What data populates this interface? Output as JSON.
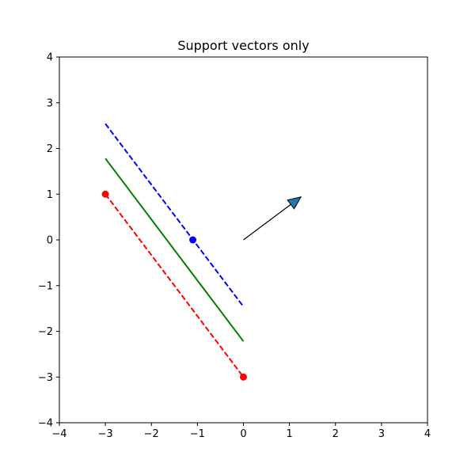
{
  "chart_data": {
    "type": "line",
    "title": "Support vectors only",
    "xlabel": "",
    "ylabel": "",
    "xlim": [
      -4,
      4
    ],
    "ylim": [
      -4,
      4
    ],
    "grid": false,
    "x_ticks": [
      -4,
      -3,
      -2,
      -1,
      0,
      1,
      2,
      3,
      4
    ],
    "y_ticks": [
      -4,
      -3,
      -2,
      -1,
      0,
      1,
      2,
      3,
      4
    ],
    "x_tick_labels": [
      "−4",
      "−3",
      "−2",
      "−1",
      "0",
      "1",
      "2",
      "3",
      "4"
    ],
    "y_tick_labels": [
      "−4",
      "−3",
      "−2",
      "−1",
      "0",
      "1",
      "2",
      "3",
      "4"
    ],
    "lines": [
      {
        "name": "decision-boundary",
        "style": "solid",
        "color": "#008000",
        "x": [
          -3,
          0
        ],
        "y": [
          1.78,
          -2.22
        ]
      },
      {
        "name": "margin-positive",
        "style": "dashed",
        "color": "#0000ff",
        "x": [
          -3,
          0
        ],
        "y": [
          2.54,
          -1.46
        ]
      },
      {
        "name": "margin-negative",
        "style": "dashed",
        "color": "#ff0000",
        "x": [
          -3,
          0
        ],
        "y": [
          1.0,
          -3.0
        ]
      }
    ],
    "points": [
      {
        "name": "support-vector-blue",
        "color": "#0000ff",
        "x": -1.1,
        "y": 0.0
      },
      {
        "name": "support-vector-red-1",
        "color": "#ff0000",
        "x": -3.0,
        "y": 1.0
      },
      {
        "name": "support-vector-red-2",
        "color": "#ff0000",
        "x": 0.0,
        "y": -3.0
      }
    ],
    "arrow": {
      "name": "weight-vector",
      "x0": 0,
      "y0": 0,
      "x1": 1.25,
      "y1": 0.94,
      "head_color": "#1f77b4"
    }
  }
}
